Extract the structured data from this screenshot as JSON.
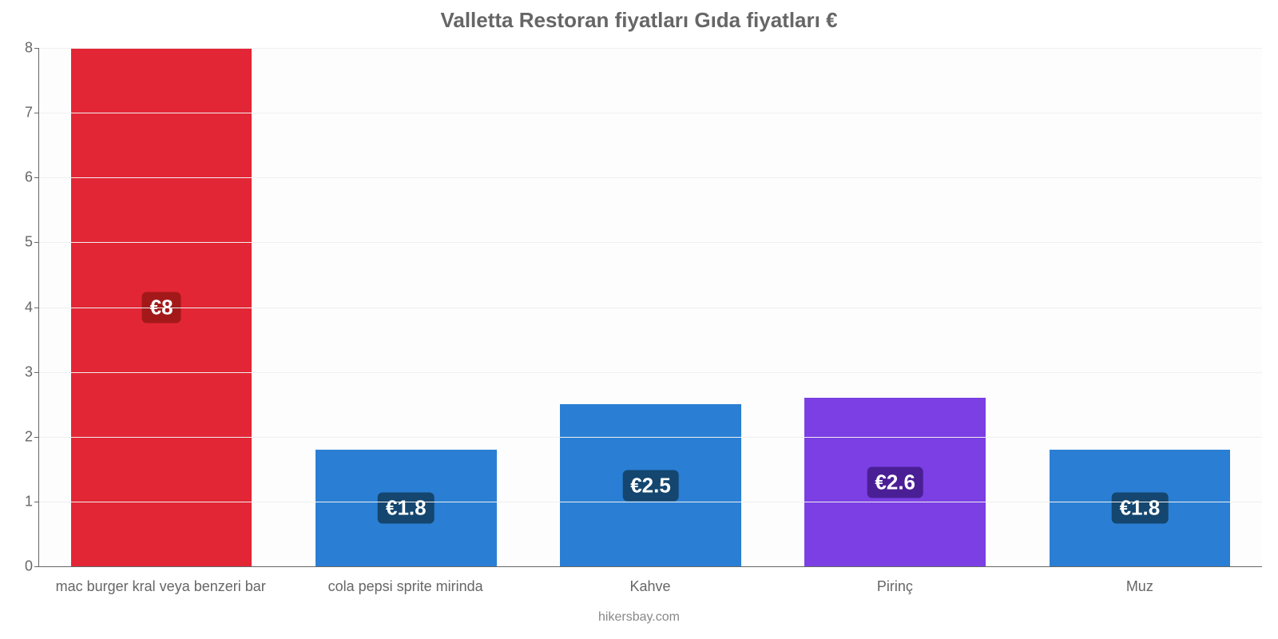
{
  "chart": {
    "type": "bar",
    "title": "Valletta Restoran fiyatları Gıda fiyatları €",
    "title_fontsize": 26,
    "title_color": "#666666",
    "footer": "hikersbay.com",
    "footer_fontsize": 16,
    "footer_color": "#888888",
    "background_color": "#ffffff",
    "plot_background": "#fdfdfd",
    "grid_color": "#f0f0f0",
    "axis_color": "#666666",
    "ylim": [
      0,
      8
    ],
    "ytick_step": 1,
    "ytick_fontsize": 18,
    "xtick_fontsize": 18,
    "bar_width_pct": 74,
    "value_label_fontsize": 26,
    "value_label_color": "#ffffff",
    "value_badge_radius": 6,
    "bars": [
      {
        "category": "mac burger kral veya benzeri bar",
        "value": 8.0,
        "label": "€8",
        "bar_color": "#e32636",
        "badge_color": "#a3191a"
      },
      {
        "category": "cola pepsi sprite mirinda",
        "value": 1.8,
        "label": "€1.8",
        "bar_color": "#2a7fd4",
        "badge_color": "#14466f"
      },
      {
        "category": "Kahve",
        "value": 2.5,
        "label": "€2.5",
        "bar_color": "#2a7fd4",
        "badge_color": "#14466f"
      },
      {
        "category": "Pirinç",
        "value": 2.6,
        "label": "€2.6",
        "bar_color": "#7b3fe4",
        "badge_color": "#4a1f96"
      },
      {
        "category": "Muz",
        "value": 1.8,
        "label": "€1.8",
        "bar_color": "#2a7fd4",
        "badge_color": "#14466f"
      }
    ]
  }
}
